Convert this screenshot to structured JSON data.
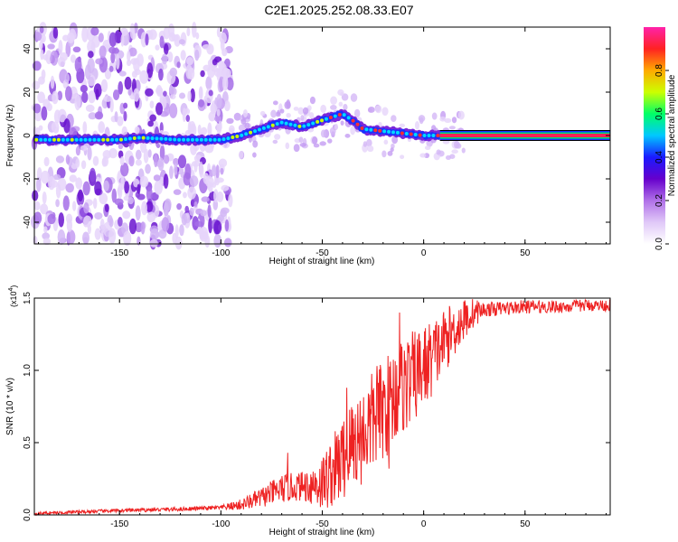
{
  "figure": {
    "title": "C2E1.2025.252.08.33.E07"
  },
  "chart_data": [
    {
      "type": "heatmap",
      "xlabel": "Height of straight line (km)",
      "ylabel": "Frequency (Hz)",
      "xlim": [
        -192,
        92
      ],
      "ylim": [
        -50,
        50
      ],
      "xticks": [
        -150,
        -100,
        -50,
        0,
        50
      ],
      "xtick_labels": [
        "-150",
        "-100",
        "-50",
        "0",
        "50"
      ],
      "yticks": [
        -40,
        -20,
        0,
        20,
        40
      ],
      "ytick_labels": [
        "-40",
        "-20",
        "0",
        "20",
        "40"
      ],
      "colorbar": {
        "label": "Normalized spectral amplitude",
        "range": [
          0,
          1
        ],
        "ticks": [
          0.0,
          0.2,
          0.4,
          0.6,
          0.8
        ],
        "tick_labels": [
          "0.0",
          "0.2",
          "0.4",
          "0.6",
          "0.8"
        ],
        "colormap": [
          "#ffffff",
          "#e0c8f8",
          "#b070e8",
          "#6600cc",
          "#1a1aff",
          "#00c8ff",
          "#00ff66",
          "#ccff00",
          "#ffaa00",
          "#ff2222",
          "#ff22aa"
        ]
      },
      "ridge": {
        "description_points": [
          {
            "x": -190,
            "f": -2
          },
          {
            "x": -150,
            "f": -2
          },
          {
            "x": -140,
            "f": -1
          },
          {
            "x": -120,
            "f": -2
          },
          {
            "x": -100,
            "f": -2
          },
          {
            "x": -90,
            "f": 0
          },
          {
            "x": -80,
            "f": 3
          },
          {
            "x": -70,
            "f": 6
          },
          {
            "x": -60,
            "f": 4
          },
          {
            "x": -50,
            "f": 7
          },
          {
            "x": -40,
            "f": 10
          },
          {
            "x": -35,
            "f": 7
          },
          {
            "x": -30,
            "f": 3
          },
          {
            "x": -20,
            "f": 2
          },
          {
            "x": -10,
            "f": 1
          },
          {
            "x": 0,
            "f": 0
          },
          {
            "x": 10,
            "f": 0
          },
          {
            "x": 92,
            "f": 0
          }
        ],
        "steady_from_x": 8
      },
      "scatter_extent_x": [
        -192,
        -95
      ]
    },
    {
      "type": "line",
      "xlabel": "Height of straight line (km)",
      "ylabel": "SNR (10 * v/v)",
      "multiplier_label": "(x10",
      "multiplier_exp": "4",
      "multiplier_close": ")",
      "xlim": [
        -192,
        92
      ],
      "ylim": [
        0,
        1.5
      ],
      "xticks": [
        -150,
        -100,
        -50,
        0,
        50
      ],
      "xtick_labels": [
        "-150",
        "-100",
        "-50",
        "0",
        "50"
      ],
      "yticks": [
        0.0,
        0.5,
        1.0,
        1.5
      ],
      "ytick_labels": [
        "0.0",
        "0.5",
        "1.0",
        "1.5"
      ],
      "color": "#ee2222",
      "trend": {
        "x": [
          -192,
          -150,
          -120,
          -100,
          -90,
          -80,
          -70,
          -60,
          -50,
          -45,
          -40,
          -35,
          -30,
          -25,
          -20,
          -15,
          -10,
          -5,
          0,
          5,
          10,
          15,
          20,
          25,
          30,
          40,
          50,
          60,
          70,
          80,
          92
        ],
        "y": [
          0.01,
          0.03,
          0.04,
          0.05,
          0.07,
          0.12,
          0.18,
          0.2,
          0.22,
          0.3,
          0.38,
          0.5,
          0.55,
          0.65,
          0.72,
          0.82,
          0.9,
          0.95,
          1.02,
          1.1,
          1.2,
          1.28,
          1.35,
          1.4,
          1.42,
          1.43,
          1.44,
          1.44,
          1.44,
          1.45,
          1.45
        ]
      },
      "noise_amplitude": {
        "x": [
          -192,
          -100,
          -90,
          -70,
          -60,
          -40,
          -30,
          -10,
          0,
          20,
          30,
          92
        ],
        "a": [
          0.01,
          0.015,
          0.04,
          0.1,
          0.1,
          0.3,
          0.35,
          0.35,
          0.3,
          0.15,
          0.05,
          0.04
        ]
      },
      "spikes": [
        {
          "x": -38,
          "y": 0.88
        },
        {
          "x": -12,
          "y": 1.4
        },
        {
          "x": -23,
          "y": 1.03
        },
        {
          "x": -17,
          "y": 0.32
        },
        {
          "x": -67,
          "y": 0.43
        }
      ]
    }
  ]
}
